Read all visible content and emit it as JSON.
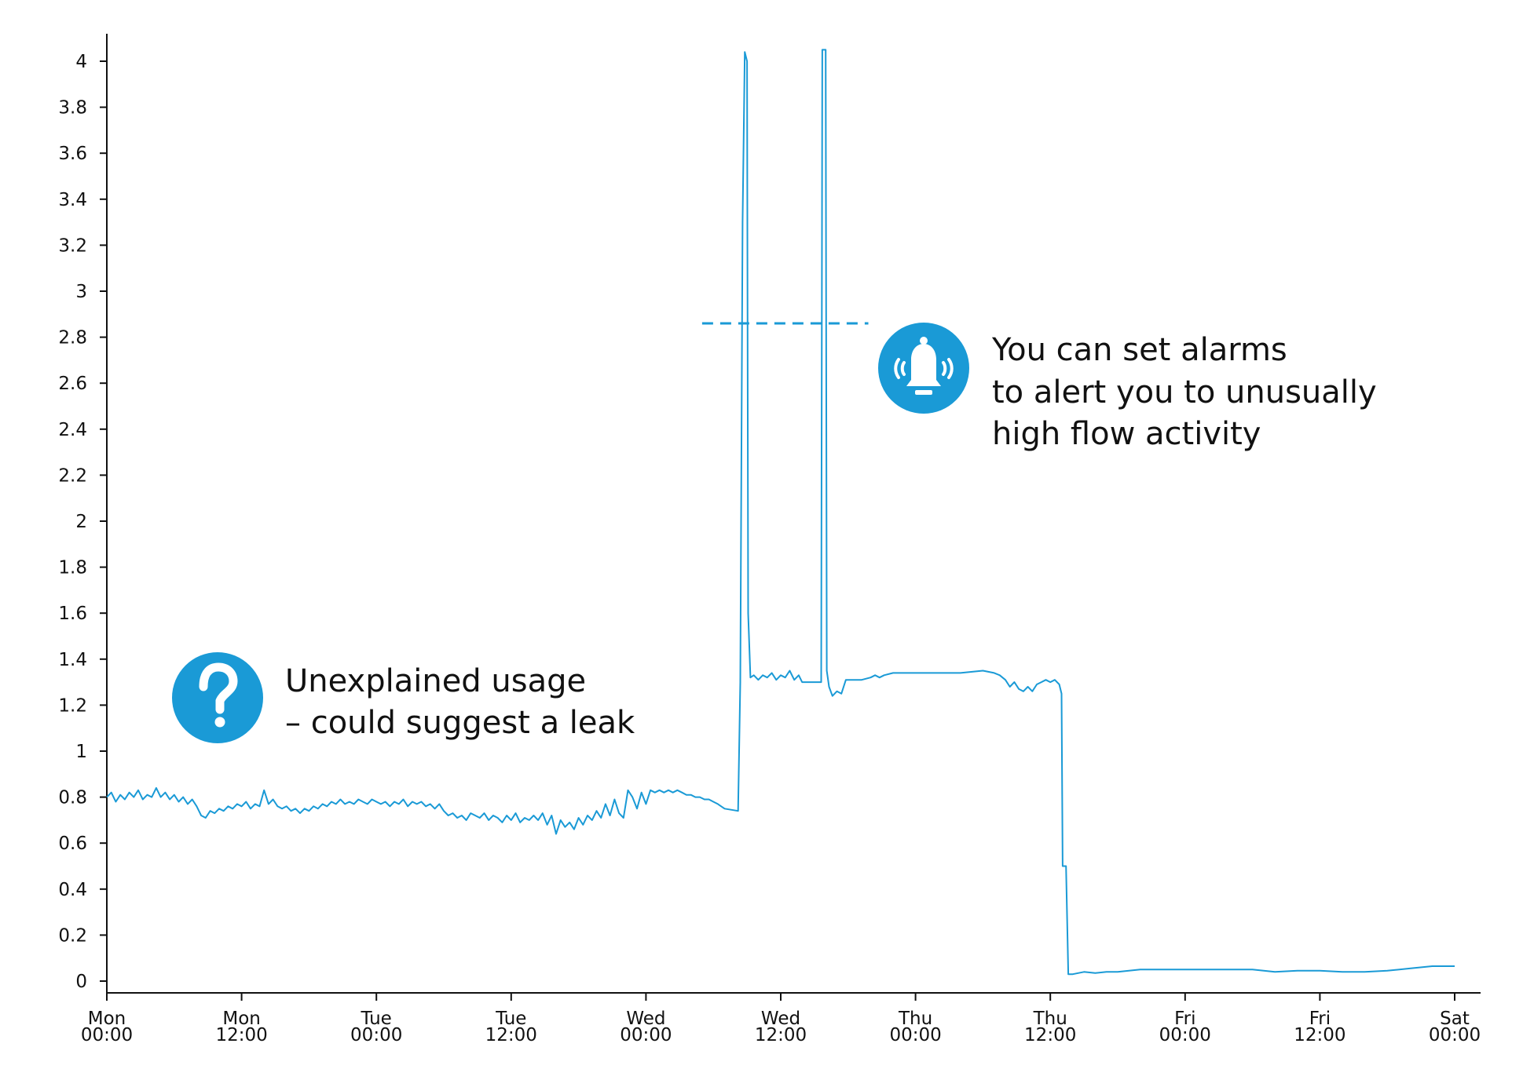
{
  "chart_data": {
    "type": "line",
    "title": "",
    "xlabel": "",
    "ylabel": "",
    "xlim": [
      0,
      120
    ],
    "ylim": [
      0,
      4
    ],
    "x_unit": "hours from Mon 00:00",
    "grid": false,
    "legend": "none",
    "colors": {
      "line": "#1a9ad6",
      "accent": "#1a9ad6",
      "axis": "#111111"
    },
    "y_ticks": [
      {
        "value": 0,
        "label": "0"
      },
      {
        "value": 0.2,
        "label": "0.2"
      },
      {
        "value": 0.4,
        "label": "0.4"
      },
      {
        "value": 0.6,
        "label": "0.6"
      },
      {
        "value": 0.8,
        "label": "0.8"
      },
      {
        "value": 1.0,
        "label": "1"
      },
      {
        "value": 1.2,
        "label": "1.2"
      },
      {
        "value": 1.4,
        "label": "1.4"
      },
      {
        "value": 1.6,
        "label": "1.6"
      },
      {
        "value": 1.8,
        "label": "1.8"
      },
      {
        "value": 2.0,
        "label": "2"
      },
      {
        "value": 2.2,
        "label": "2.2"
      },
      {
        "value": 2.4,
        "label": "2.4"
      },
      {
        "value": 2.6,
        "label": "2.6"
      },
      {
        "value": 2.8,
        "label": "2.8"
      },
      {
        "value": 3.0,
        "label": "3"
      },
      {
        "value": 3.2,
        "label": "3.2"
      },
      {
        "value": 3.4,
        "label": "3.4"
      },
      {
        "value": 3.6,
        "label": "3.6"
      },
      {
        "value": 3.8,
        "label": "3.8"
      },
      {
        "value": 4.0,
        "label": "4"
      }
    ],
    "x_ticks": [
      {
        "value": 0,
        "day": "Mon",
        "time": "00:00"
      },
      {
        "value": 12,
        "day": "Mon",
        "time": "12:00"
      },
      {
        "value": 24,
        "day": "Tue",
        "time": "00:00"
      },
      {
        "value": 36,
        "day": "Tue",
        "time": "12:00"
      },
      {
        "value": 48,
        "day": "Wed",
        "time": "00:00"
      },
      {
        "value": 60,
        "day": "Wed",
        "time": "12:00"
      },
      {
        "value": 72,
        "day": "Thu",
        "time": "00:00"
      },
      {
        "value": 84,
        "day": "Thu",
        "time": "12:00"
      },
      {
        "value": 96,
        "day": "Fri",
        "time": "00:00"
      },
      {
        "value": 108,
        "day": "Fri",
        "time": "12:00"
      },
      {
        "value": 120,
        "day": "Sat",
        "time": "00:00"
      }
    ],
    "series": [
      {
        "points": [
          [
            0.0,
            0.8
          ],
          [
            0.4,
            0.82
          ],
          [
            0.8,
            0.78
          ],
          [
            1.2,
            0.81
          ],
          [
            1.6,
            0.79
          ],
          [
            2.0,
            0.82
          ],
          [
            2.4,
            0.8
          ],
          [
            2.8,
            0.83
          ],
          [
            3.2,
            0.79
          ],
          [
            3.6,
            0.81
          ],
          [
            4.0,
            0.8
          ],
          [
            4.4,
            0.84
          ],
          [
            4.8,
            0.8
          ],
          [
            5.2,
            0.82
          ],
          [
            5.6,
            0.79
          ],
          [
            6.0,
            0.81
          ],
          [
            6.4,
            0.78
          ],
          [
            6.8,
            0.8
          ],
          [
            7.2,
            0.77
          ],
          [
            7.6,
            0.79
          ],
          [
            8.0,
            0.76
          ],
          [
            8.4,
            0.72
          ],
          [
            8.8,
            0.71
          ],
          [
            9.2,
            0.74
          ],
          [
            9.6,
            0.73
          ],
          [
            10.0,
            0.75
          ],
          [
            10.4,
            0.74
          ],
          [
            10.8,
            0.76
          ],
          [
            11.2,
            0.75
          ],
          [
            11.6,
            0.77
          ],
          [
            12.0,
            0.76
          ],
          [
            12.4,
            0.78
          ],
          [
            12.8,
            0.75
          ],
          [
            13.2,
            0.77
          ],
          [
            13.6,
            0.76
          ],
          [
            14.0,
            0.83
          ],
          [
            14.4,
            0.77
          ],
          [
            14.8,
            0.79
          ],
          [
            15.2,
            0.76
          ],
          [
            15.6,
            0.75
          ],
          [
            16.0,
            0.76
          ],
          [
            16.4,
            0.74
          ],
          [
            16.8,
            0.75
          ],
          [
            17.2,
            0.73
          ],
          [
            17.6,
            0.75
          ],
          [
            18.0,
            0.74
          ],
          [
            18.4,
            0.76
          ],
          [
            18.8,
            0.75
          ],
          [
            19.2,
            0.77
          ],
          [
            19.6,
            0.76
          ],
          [
            20.0,
            0.78
          ],
          [
            20.4,
            0.77
          ],
          [
            20.8,
            0.79
          ],
          [
            21.2,
            0.77
          ],
          [
            21.6,
            0.78
          ],
          [
            22.0,
            0.77
          ],
          [
            22.4,
            0.79
          ],
          [
            22.8,
            0.78
          ],
          [
            23.2,
            0.77
          ],
          [
            23.6,
            0.79
          ],
          [
            24.0,
            0.78
          ],
          [
            24.4,
            0.77
          ],
          [
            24.8,
            0.78
          ],
          [
            25.2,
            0.76
          ],
          [
            25.6,
            0.78
          ],
          [
            26.0,
            0.77
          ],
          [
            26.4,
            0.79
          ],
          [
            26.8,
            0.76
          ],
          [
            27.2,
            0.78
          ],
          [
            27.6,
            0.77
          ],
          [
            28.0,
            0.78
          ],
          [
            28.4,
            0.76
          ],
          [
            28.8,
            0.77
          ],
          [
            29.2,
            0.75
          ],
          [
            29.6,
            0.77
          ],
          [
            30.0,
            0.74
          ],
          [
            30.4,
            0.72
          ],
          [
            30.8,
            0.73
          ],
          [
            31.2,
            0.71
          ],
          [
            31.6,
            0.72
          ],
          [
            32.0,
            0.7
          ],
          [
            32.4,
            0.73
          ],
          [
            32.8,
            0.72
          ],
          [
            33.2,
            0.71
          ],
          [
            33.6,
            0.73
          ],
          [
            34.0,
            0.7
          ],
          [
            34.4,
            0.72
          ],
          [
            34.8,
            0.71
          ],
          [
            35.2,
            0.69
          ],
          [
            35.6,
            0.72
          ],
          [
            36.0,
            0.7
          ],
          [
            36.4,
            0.73
          ],
          [
            36.8,
            0.69
          ],
          [
            37.2,
            0.71
          ],
          [
            37.6,
            0.7
          ],
          [
            38.0,
            0.72
          ],
          [
            38.4,
            0.7
          ],
          [
            38.8,
            0.73
          ],
          [
            39.2,
            0.68
          ],
          [
            39.6,
            0.72
          ],
          [
            40.0,
            0.64
          ],
          [
            40.4,
            0.7
          ],
          [
            40.8,
            0.67
          ],
          [
            41.2,
            0.69
          ],
          [
            41.6,
            0.66
          ],
          [
            42.0,
            0.71
          ],
          [
            42.4,
            0.68
          ],
          [
            42.8,
            0.72
          ],
          [
            43.2,
            0.7
          ],
          [
            43.6,
            0.74
          ],
          [
            44.0,
            0.71
          ],
          [
            44.4,
            0.77
          ],
          [
            44.8,
            0.72
          ],
          [
            45.2,
            0.79
          ],
          [
            45.6,
            0.73
          ],
          [
            46.0,
            0.71
          ],
          [
            46.4,
            0.83
          ],
          [
            46.8,
            0.8
          ],
          [
            47.2,
            0.75
          ],
          [
            47.6,
            0.82
          ],
          [
            48.0,
            0.77
          ],
          [
            48.4,
            0.83
          ],
          [
            48.8,
            0.82
          ],
          [
            49.2,
            0.83
          ],
          [
            49.6,
            0.82
          ],
          [
            50.0,
            0.83
          ],
          [
            50.4,
            0.82
          ],
          [
            50.8,
            0.83
          ],
          [
            51.2,
            0.82
          ],
          [
            51.6,
            0.81
          ],
          [
            52.0,
            0.81
          ],
          [
            52.4,
            0.8
          ],
          [
            52.8,
            0.8
          ],
          [
            53.2,
            0.79
          ],
          [
            53.6,
            0.79
          ],
          [
            54.0,
            0.78
          ],
          [
            54.4,
            0.77
          ],
          [
            55.0,
            0.75
          ],
          [
            56.2,
            0.74
          ],
          [
            56.4,
            1.3
          ],
          [
            56.6,
            3.3
          ],
          [
            56.8,
            4.04
          ],
          [
            57.0,
            4.0
          ],
          [
            57.1,
            1.6
          ],
          [
            57.3,
            1.32
          ],
          [
            57.6,
            1.33
          ],
          [
            58.0,
            1.31
          ],
          [
            58.4,
            1.33
          ],
          [
            58.8,
            1.32
          ],
          [
            59.2,
            1.34
          ],
          [
            59.6,
            1.31
          ],
          [
            60.0,
            1.33
          ],
          [
            60.4,
            1.32
          ],
          [
            60.8,
            1.35
          ],
          [
            61.2,
            1.31
          ],
          [
            61.6,
            1.33
          ],
          [
            61.9,
            1.3
          ],
          [
            62.6,
            1.3
          ],
          [
            63.2,
            1.3
          ],
          [
            63.6,
            1.3
          ],
          [
            63.7,
            4.05
          ],
          [
            64.0,
            4.05
          ],
          [
            64.1,
            1.35
          ],
          [
            64.3,
            1.28
          ],
          [
            64.6,
            1.24
          ],
          [
            65.0,
            1.26
          ],
          [
            65.4,
            1.25
          ],
          [
            65.8,
            1.31
          ],
          [
            66.4,
            1.31
          ],
          [
            67.2,
            1.31
          ],
          [
            68.0,
            1.32
          ],
          [
            68.4,
            1.33
          ],
          [
            68.8,
            1.32
          ],
          [
            69.2,
            1.33
          ],
          [
            70.0,
            1.34
          ],
          [
            72.0,
            1.34
          ],
          [
            74.0,
            1.34
          ],
          [
            76.0,
            1.34
          ],
          [
            78.0,
            1.35
          ],
          [
            79.0,
            1.34
          ],
          [
            79.5,
            1.33
          ],
          [
            80.0,
            1.31
          ],
          [
            80.4,
            1.28
          ],
          [
            80.8,
            1.3
          ],
          [
            81.2,
            1.27
          ],
          [
            81.6,
            1.26
          ],
          [
            82.0,
            1.28
          ],
          [
            82.4,
            1.26
          ],
          [
            82.8,
            1.29
          ],
          [
            83.2,
            1.3
          ],
          [
            83.6,
            1.31
          ],
          [
            84.0,
            1.3
          ],
          [
            84.4,
            1.31
          ],
          [
            84.8,
            1.29
          ],
          [
            85.0,
            1.25
          ],
          [
            85.1,
            0.5
          ],
          [
            85.4,
            0.5
          ],
          [
            85.6,
            0.03
          ],
          [
            86.0,
            0.03
          ],
          [
            87.0,
            0.04
          ],
          [
            88.0,
            0.035
          ],
          [
            89.0,
            0.04
          ],
          [
            90.0,
            0.04
          ],
          [
            91.0,
            0.045
          ],
          [
            92.0,
            0.05
          ],
          [
            94.0,
            0.05
          ],
          [
            96.0,
            0.05
          ],
          [
            98.0,
            0.05
          ],
          [
            100.0,
            0.05
          ],
          [
            102.0,
            0.05
          ],
          [
            104.0,
            0.04
          ],
          [
            106.0,
            0.045
          ],
          [
            108.0,
            0.045
          ],
          [
            110.0,
            0.04
          ],
          [
            112.0,
            0.04
          ],
          [
            114.0,
            0.045
          ],
          [
            116.0,
            0.055
          ],
          [
            118.0,
            0.065
          ],
          [
            120.0,
            0.065
          ]
        ]
      }
    ],
    "threshold": {
      "value": 2.86,
      "x_start": 53.0,
      "x_end": 67.8
    },
    "annotations": [
      {
        "id": "leak",
        "icon": "question-mark-icon",
        "lines": [
          "Unexplained usage",
          "– could suggest a leak"
        ]
      },
      {
        "id": "alarm",
        "icon": "bell-icon",
        "lines": [
          "You can set alarms",
          "to alert you to unusually",
          "high flow activity"
        ]
      }
    ]
  }
}
